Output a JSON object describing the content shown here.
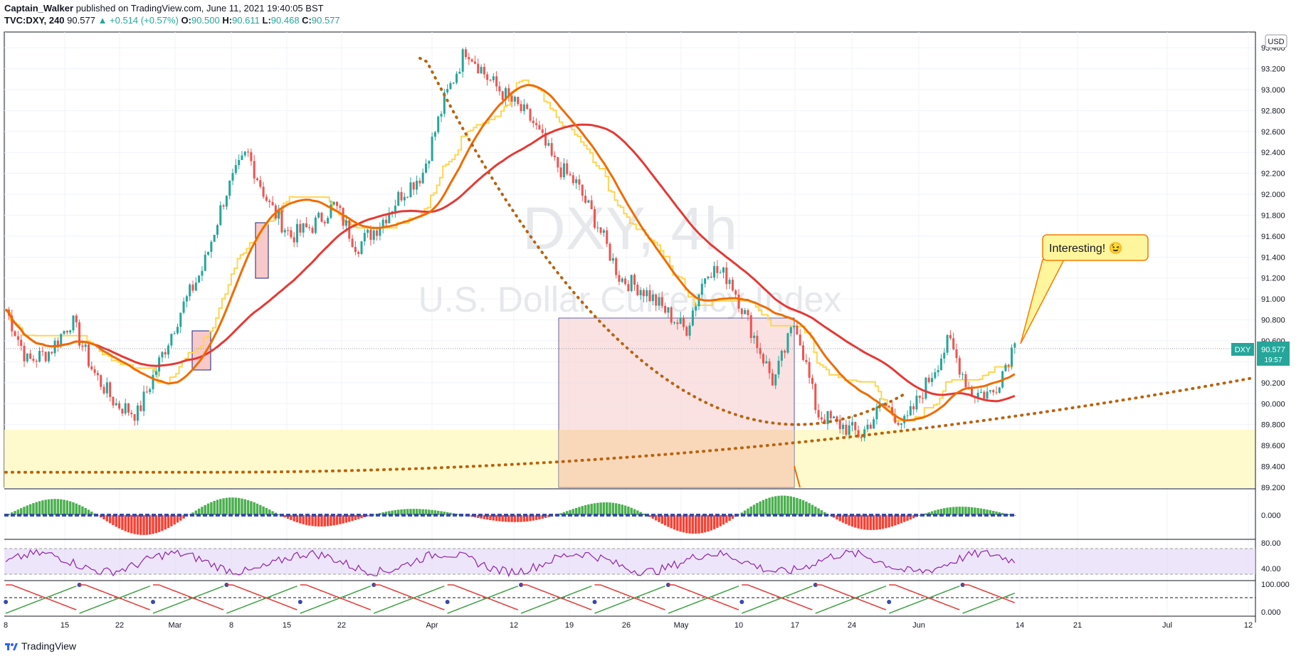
{
  "header": {
    "author": "Captain_Walker",
    "published": "published on TradingView.com, June 11, 2021 19:40:05 BST",
    "symbol": "TVC:DXY, 240",
    "last": "90.577",
    "change": "▲ +0.514 (+0.57%)",
    "o_label": "O:",
    "o_val": "90.500",
    "h_label": "H:",
    "h_val": "90.611",
    "l_label": "L:",
    "l_val": "90.468",
    "c_label": "C:",
    "c_val": "90.577"
  },
  "watermark": {
    "symbol": "DXY, 4h",
    "name": "U.S. Dollar Currency Index"
  },
  "price_scale": {
    "currency": "USD"
  },
  "last_price_label": {
    "symbol": "DXY",
    "price": "90.577",
    "countdown": "19:57"
  },
  "annotation": {
    "text": "Interesting! 😉"
  },
  "footer": {
    "brand": "TradingView"
  },
  "colors": {
    "up": "#26a69a",
    "down": "#ef5350",
    "ma_fast": "#ef6c00",
    "ma_slow": "#e53935",
    "kijun": "#ffd54f",
    "dotted": "#b86410"
  },
  "chart_data": [
    {
      "type": "candlestick",
      "symbol": "DXY",
      "timeframe": "4h",
      "x_ticks": [
        "8",
        "15",
        "22",
        "Mar",
        "8",
        "15",
        "22",
        "Apr",
        "12",
        "19",
        "26",
        "May",
        "10",
        "17",
        "24",
        "Jun",
        "14",
        "21",
        "Jul",
        "12"
      ],
      "y_ticks": [
        "93.400",
        "93.200",
        "93.000",
        "92.800",
        "92.600",
        "92.400",
        "92.200",
        "92.000",
        "91.800",
        "91.600",
        "91.400",
        "91.200",
        "91.000",
        "90.800",
        "90.600",
        "90.400",
        "90.200",
        "90.000",
        "89.800",
        "89.600",
        "89.400",
        "89.200"
      ],
      "ylim": [
        89.2,
        93.55
      ],
      "approx_close_path": [
        90.9,
        90.4,
        90.5,
        90.8,
        90.3,
        90.0,
        89.9,
        90.4,
        90.9,
        91.3,
        92.0,
        92.4,
        91.9,
        91.6,
        91.7,
        91.9,
        91.5,
        91.7,
        92.0,
        92.2,
        92.9,
        93.4,
        93.1,
        92.9,
        92.7,
        92.3,
        92.1,
        91.7,
        91.2,
        91.1,
        90.9,
        90.7,
        91.3,
        91.2,
        90.7,
        90.2,
        90.8,
        89.9,
        89.8,
        89.7,
        90.0,
        89.8,
        90.2,
        90.6,
        90.1,
        90.1,
        90.58
      ],
      "overlays": [
        "fast moving average",
        "slow moving average",
        "kijun-style line",
        "dotted curve",
        "dotted trendline"
      ]
    },
    {
      "type": "histogram",
      "name": "momentum oscillator",
      "y_ticks": [
        "0.000"
      ]
    },
    {
      "type": "line",
      "name": "RSI",
      "y_ticks": [
        "80.00",
        "40.00"
      ],
      "band": [
        40,
        80
      ]
    },
    {
      "type": "line",
      "name": "stochastic oscillator",
      "y_ticks": [
        "100.000",
        "0.000"
      ],
      "ylim": [
        0,
        100
      ]
    }
  ]
}
